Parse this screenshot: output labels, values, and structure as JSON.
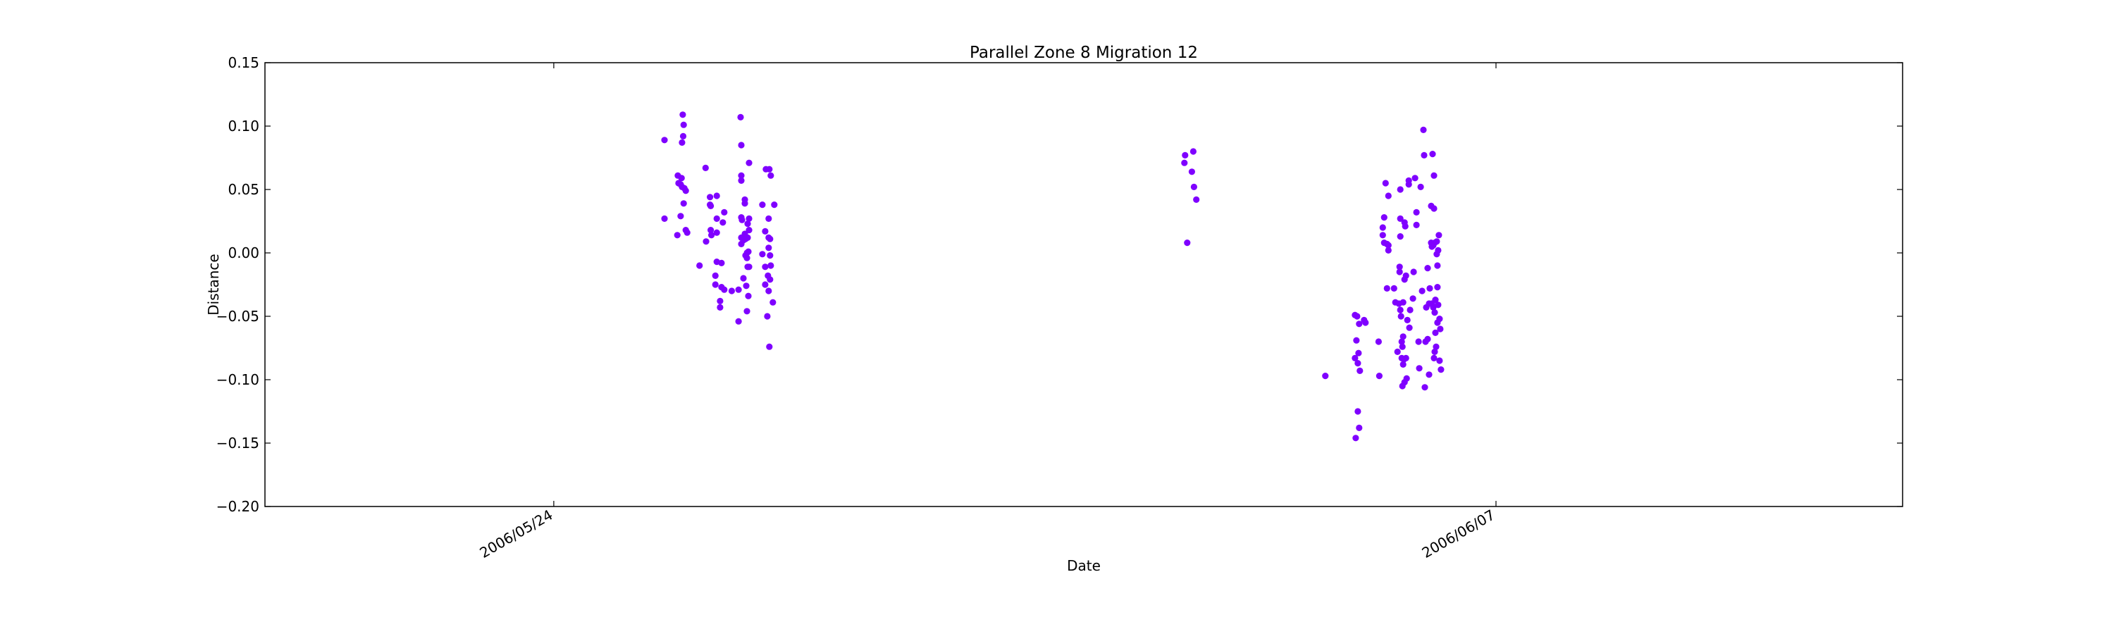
{
  "chart_data": {
    "type": "scatter",
    "title": "Parallel Zone 8 Migration 12",
    "xlabel": "Date",
    "ylabel": "Distance",
    "x_axis_type": "date",
    "xlim": [
      "2006-05-19T17:00",
      "2006-06-13T01:00"
    ],
    "ylim": [
      -0.2,
      0.15
    ],
    "x_ticks": [
      {
        "value": "2006-05-24T00:00",
        "label": "2006/05/24"
      },
      {
        "value": "2006-06-07T00:00",
        "label": "2006/06/07"
      }
    ],
    "y_ticks": [
      {
        "value": 0.15,
        "label": "0.15"
      },
      {
        "value": 0.1,
        "label": "0.10"
      },
      {
        "value": 0.05,
        "label": "0.05"
      },
      {
        "value": 0.0,
        "label": "0.00"
      },
      {
        "value": -0.05,
        "label": "−0.05"
      },
      {
        "value": -0.1,
        "label": "−0.10"
      },
      {
        "value": -0.15,
        "label": "−0.15"
      },
      {
        "value": -0.2,
        "label": "−0.20"
      }
    ],
    "grid": false,
    "legend": "none",
    "marker_color": "#7f00ff",
    "points": [
      {
        "x": "2006-05-25T15:29",
        "y": 0.089
      },
      {
        "x": "2006-05-25T15:29",
        "y": 0.027
      },
      {
        "x": "2006-05-25T20:04",
        "y": 0.014
      },
      {
        "x": "2006-05-25T20:14",
        "y": 0.061
      },
      {
        "x": "2006-05-25T20:29",
        "y": 0.055
      },
      {
        "x": "2006-05-25T21:14",
        "y": 0.054
      },
      {
        "x": "2006-05-25T21:14",
        "y": 0.029
      },
      {
        "x": "2006-05-25T21:34",
        "y": 0.059
      },
      {
        "x": "2006-05-25T21:44",
        "y": 0.052
      },
      {
        "x": "2006-05-25T21:44",
        "y": 0.087
      },
      {
        "x": "2006-05-25T21:59",
        "y": 0.109
      },
      {
        "x": "2006-05-25T22:09",
        "y": 0.092
      },
      {
        "x": "2006-05-25T22:19",
        "y": 0.101
      },
      {
        "x": "2006-05-25T22:19",
        "y": 0.039
      },
      {
        "x": "2006-05-25T22:34",
        "y": 0.051
      },
      {
        "x": "2006-05-25T23:04",
        "y": 0.018
      },
      {
        "x": "2006-05-25T23:04",
        "y": 0.049
      },
      {
        "x": "2006-05-25T23:34",
        "y": 0.016
      },
      {
        "x": "2006-05-26T03:58",
        "y": -0.01
      },
      {
        "x": "2006-05-26T06:08",
        "y": 0.067
      },
      {
        "x": "2006-05-26T06:18",
        "y": 0.009
      },
      {
        "x": "2006-05-26T07:43",
        "y": 0.044
      },
      {
        "x": "2006-05-26T07:43",
        "y": 0.038
      },
      {
        "x": "2006-05-26T07:58",
        "y": 0.037
      },
      {
        "x": "2006-05-26T07:58",
        "y": 0.018
      },
      {
        "x": "2006-05-26T08:13",
        "y": 0.014
      },
      {
        "x": "2006-05-26T09:38",
        "y": -0.018
      },
      {
        "x": "2006-05-26T09:38",
        "y": -0.025
      },
      {
        "x": "2006-05-26T10:08",
        "y": -0.007
      },
      {
        "x": "2006-05-26T10:08",
        "y": 0.027
      },
      {
        "x": "2006-05-26T10:08",
        "y": 0.045
      },
      {
        "x": "2006-05-26T10:08",
        "y": 0.016
      },
      {
        "x": "2006-05-26T11:18",
        "y": -0.038
      },
      {
        "x": "2006-05-26T11:18",
        "y": -0.043
      },
      {
        "x": "2006-05-26T11:48",
        "y": -0.008
      },
      {
        "x": "2006-05-26T11:48",
        "y": -0.027
      },
      {
        "x": "2006-05-26T12:18",
        "y": 0.024
      },
      {
        "x": "2006-05-26T12:48",
        "y": 0.032
      },
      {
        "x": "2006-05-26T12:48",
        "y": -0.029
      },
      {
        "x": "2006-05-26T15:28",
        "y": -0.03
      },
      {
        "x": "2006-05-26T17:53",
        "y": -0.029
      },
      {
        "x": "2006-05-26T17:53",
        "y": -0.054
      },
      {
        "x": "2006-05-26T18:38",
        "y": 0.107
      },
      {
        "x": "2006-05-26T18:53",
        "y": 0.085
      },
      {
        "x": "2006-05-26T18:53",
        "y": 0.057
      },
      {
        "x": "2006-05-26T18:53",
        "y": 0.061
      },
      {
        "x": "2006-05-26T18:53",
        "y": 0.028
      },
      {
        "x": "2006-05-26T18:53",
        "y": 0.012
      },
      {
        "x": "2006-05-26T18:53",
        "y": 0.007
      },
      {
        "x": "2006-05-26T19:08",
        "y": 0.026
      },
      {
        "x": "2006-05-26T19:38",
        "y": 0.01
      },
      {
        "x": "2006-05-26T19:38",
        "y": -0.02
      },
      {
        "x": "2006-05-26T20:08",
        "y": 0.042
      },
      {
        "x": "2006-05-26T20:08",
        "y": 0.039
      },
      {
        "x": "2006-05-26T20:08",
        "y": 0.015
      },
      {
        "x": "2006-05-26T20:23",
        "y": 0.011
      },
      {
        "x": "2006-05-26T20:23",
        "y": -0.002
      },
      {
        "x": "2006-05-26T20:38",
        "y": -0.026
      },
      {
        "x": "2006-05-26T20:53",
        "y": -0.046
      },
      {
        "x": "2006-05-26T20:53",
        "y": 0.012
      },
      {
        "x": "2006-05-26T20:53",
        "y": 0.0
      },
      {
        "x": "2006-05-26T20:53",
        "y": -0.004
      },
      {
        "x": "2006-05-26T21:08",
        "y": 0.023
      },
      {
        "x": "2006-05-26T21:08",
        "y": 0.012
      },
      {
        "x": "2006-05-26T21:08",
        "y": -0.011
      },
      {
        "x": "2006-05-26T21:23",
        "y": -0.034
      },
      {
        "x": "2006-05-26T21:23",
        "y": 0.001
      },
      {
        "x": "2006-05-26T21:38",
        "y": 0.071
      },
      {
        "x": "2006-05-26T21:38",
        "y": 0.018
      },
      {
        "x": "2006-05-26T21:38",
        "y": 0.027
      },
      {
        "x": "2006-05-26T21:38",
        "y": -0.011
      },
      {
        "x": "2006-05-27T02:23",
        "y": 0.038
      },
      {
        "x": "2006-05-27T02:23",
        "y": -0.001
      },
      {
        "x": "2006-05-27T03:23",
        "y": 0.017
      },
      {
        "x": "2006-05-27T03:23",
        "y": -0.011
      },
      {
        "x": "2006-05-27T03:23",
        "y": -0.025
      },
      {
        "x": "2006-05-27T03:38",
        "y": 0.066
      },
      {
        "x": "2006-05-27T04:08",
        "y": -0.05
      },
      {
        "x": "2006-05-27T04:23",
        "y": -0.018
      },
      {
        "x": "2006-05-27T04:38",
        "y": 0.027
      },
      {
        "x": "2006-05-27T04:38",
        "y": 0.012
      },
      {
        "x": "2006-05-27T04:38",
        "y": 0.004
      },
      {
        "x": "2006-05-27T04:38",
        "y": -0.03
      },
      {
        "x": "2006-05-27T04:53",
        "y": 0.066
      },
      {
        "x": "2006-05-27T04:53",
        "y": -0.074
      },
      {
        "x": "2006-05-27T05:08",
        "y": 0.011
      },
      {
        "x": "2006-05-27T05:08",
        "y": -0.002
      },
      {
        "x": "2006-05-27T05:08",
        "y": -0.021
      },
      {
        "x": "2006-05-27T05:23",
        "y": 0.061
      },
      {
        "x": "2006-05-27T05:23",
        "y": -0.01
      },
      {
        "x": "2006-05-27T06:08",
        "y": -0.039
      },
      {
        "x": "2006-05-27T06:38",
        "y": 0.038
      },
      {
        "x": "2006-06-02T08:53",
        "y": 0.071
      },
      {
        "x": "2006-06-02T09:08",
        "y": 0.077
      },
      {
        "x": "2006-06-02T09:53",
        "y": 0.008
      },
      {
        "x": "2006-06-02T11:33",
        "y": 0.064
      },
      {
        "x": "2006-06-02T12:03",
        "y": 0.08
      },
      {
        "x": "2006-06-02T12:18",
        "y": 0.052
      },
      {
        "x": "2006-06-02T13:08",
        "y": 0.042
      },
      {
        "x": "2006-06-04T11:08",
        "y": -0.097
      },
      {
        "x": "2006-06-04T21:43",
        "y": -0.049
      },
      {
        "x": "2006-06-04T21:43",
        "y": -0.083
      },
      {
        "x": "2006-06-04T21:58",
        "y": -0.146
      },
      {
        "x": "2006-06-04T22:13",
        "y": -0.069
      },
      {
        "x": "2006-06-04T22:28",
        "y": -0.05
      },
      {
        "x": "2006-06-04T22:43",
        "y": -0.125
      },
      {
        "x": "2006-06-04T22:43",
        "y": -0.087
      },
      {
        "x": "2006-06-04T22:58",
        "y": -0.079
      },
      {
        "x": "2006-06-04T23:13",
        "y": -0.138
      },
      {
        "x": "2006-06-04T23:13",
        "y": -0.056
      },
      {
        "x": "2006-06-04T23:28",
        "y": -0.093
      },
      {
        "x": "2006-06-05T00:58",
        "y": -0.053
      },
      {
        "x": "2006-06-05T01:28",
        "y": -0.055
      },
      {
        "x": "2006-06-05T06:08",
        "y": -0.07
      },
      {
        "x": "2006-06-05T06:23",
        "y": -0.097
      },
      {
        "x": "2006-06-05T07:38",
        "y": 0.02
      },
      {
        "x": "2006-06-05T07:38",
        "y": 0.014
      },
      {
        "x": "2006-06-05T08:08",
        "y": 0.028
      },
      {
        "x": "2006-06-05T08:08",
        "y": 0.008
      },
      {
        "x": "2006-06-05T08:38",
        "y": 0.055
      },
      {
        "x": "2006-06-05T09:08",
        "y": 0.007
      },
      {
        "x": "2006-06-05T09:08",
        "y": -0.028
      },
      {
        "x": "2006-06-05T09:38",
        "y": 0.045
      },
      {
        "x": "2006-06-05T09:38",
        "y": 0.002
      },
      {
        "x": "2006-06-05T09:38",
        "y": 0.006
      },
      {
        "x": "2006-06-05T11:38",
        "y": -0.028
      },
      {
        "x": "2006-06-05T12:08",
        "y": -0.039
      },
      {
        "x": "2006-06-05T12:53",
        "y": -0.078
      },
      {
        "x": "2006-06-05T13:23",
        "y": -0.04
      },
      {
        "x": "2006-06-05T13:38",
        "y": -0.011
      },
      {
        "x": "2006-06-05T13:38",
        "y": -0.015
      },
      {
        "x": "2006-06-05T13:53",
        "y": 0.05
      },
      {
        "x": "2006-06-05T13:53",
        "y": 0.027
      },
      {
        "x": "2006-06-05T13:53",
        "y": 0.013
      },
      {
        "x": "2006-06-05T13:53",
        "y": -0.045
      },
      {
        "x": "2006-06-05T14:08",
        "y": -0.05
      },
      {
        "x": "2006-06-05T14:23",
        "y": -0.083
      },
      {
        "x": "2006-06-05T14:23",
        "y": -0.07
      },
      {
        "x": "2006-06-05T14:38",
        "y": -0.105
      },
      {
        "x": "2006-06-05T14:38",
        "y": -0.074
      },
      {
        "x": "2006-06-05T14:53",
        "y": -0.066
      },
      {
        "x": "2006-06-05T14:53",
        "y": -0.039
      },
      {
        "x": "2006-06-05T14:53",
        "y": -0.088
      },
      {
        "x": "2006-06-05T15:08",
        "y": -0.084
      },
      {
        "x": "2006-06-05T15:23",
        "y": -0.102
      },
      {
        "x": "2006-06-05T15:23",
        "y": -0.021
      },
      {
        "x": "2006-06-05T15:23",
        "y": 0.024
      },
      {
        "x": "2006-06-05T15:38",
        "y": 0.021
      },
      {
        "x": "2006-06-05T15:53",
        "y": -0.018
      },
      {
        "x": "2006-06-05T15:53",
        "y": -0.083
      },
      {
        "x": "2006-06-05T16:08",
        "y": -0.099
      },
      {
        "x": "2006-06-05T16:23",
        "y": -0.053
      },
      {
        "x": "2006-06-05T16:53",
        "y": 0.054
      },
      {
        "x": "2006-06-05T16:53",
        "y": 0.057
      },
      {
        "x": "2006-06-05T17:08",
        "y": -0.059
      },
      {
        "x": "2006-06-05T17:23",
        "y": -0.045
      },
      {
        "x": "2006-06-05T18:23",
        "y": -0.036
      },
      {
        "x": "2006-06-05T18:38",
        "y": -0.015
      },
      {
        "x": "2006-06-05T19:08",
        "y": 0.059
      },
      {
        "x": "2006-06-05T19:38",
        "y": 0.032
      },
      {
        "x": "2006-06-05T19:38",
        "y": 0.022
      },
      {
        "x": "2006-06-05T20:23",
        "y": -0.07
      },
      {
        "x": "2006-06-05T20:38",
        "y": -0.091
      },
      {
        "x": "2006-06-05T21:08",
        "y": 0.052
      },
      {
        "x": "2006-06-05T21:38",
        "y": -0.03
      },
      {
        "x": "2006-06-05T22:08",
        "y": 0.097
      },
      {
        "x": "2006-06-05T22:23",
        "y": 0.077
      },
      {
        "x": "2006-06-05T22:38",
        "y": -0.106
      },
      {
        "x": "2006-06-05T22:53",
        "y": -0.07
      },
      {
        "x": "2006-06-05T23:08",
        "y": -0.043
      },
      {
        "x": "2006-06-05T23:38",
        "y": -0.012
      },
      {
        "x": "2006-06-05T23:38",
        "y": -0.068
      },
      {
        "x": "2006-06-06T00:08",
        "y": -0.096
      },
      {
        "x": "2006-06-06T00:08",
        "y": -0.04
      },
      {
        "x": "2006-06-06T00:23",
        "y": -0.028
      },
      {
        "x": "2006-06-06T00:53",
        "y": 0.037
      },
      {
        "x": "2006-06-06T00:53",
        "y": 0.008
      },
      {
        "x": "2006-06-06T01:08",
        "y": 0.005
      },
      {
        "x": "2006-06-06T01:08",
        "y": -0.04
      },
      {
        "x": "2006-06-06T01:23",
        "y": 0.078
      },
      {
        "x": "2006-06-06T01:38",
        "y": 0.006
      },
      {
        "x": "2006-06-06T01:38",
        "y": -0.043
      },
      {
        "x": "2006-06-06T01:53",
        "y": 0.061
      },
      {
        "x": "2006-06-06T01:53",
        "y": 0.035
      },
      {
        "x": "2006-06-06T01:53",
        "y": -0.083
      },
      {
        "x": "2006-06-06T02:08",
        "y": 0.008
      },
      {
        "x": "2006-06-06T02:08",
        "y": -0.047
      },
      {
        "x": "2006-06-06T02:08",
        "y": -0.078
      },
      {
        "x": "2006-06-06T02:23",
        "y": -0.037
      },
      {
        "x": "2006-06-06T02:23",
        "y": -0.063
      },
      {
        "x": "2006-06-06T02:38",
        "y": -0.074
      },
      {
        "x": "2006-06-06T02:53",
        "y": 0.009
      },
      {
        "x": "2006-06-06T02:53",
        "y": -0.001
      },
      {
        "x": "2006-06-06T03:08",
        "y": -0.01
      },
      {
        "x": "2006-06-06T03:08",
        "y": -0.027
      },
      {
        "x": "2006-06-06T03:08",
        "y": -0.055
      },
      {
        "x": "2006-06-06T03:23",
        "y": 0.002
      },
      {
        "x": "2006-06-06T03:23",
        "y": -0.041
      },
      {
        "x": "2006-06-06T03:38",
        "y": 0.014
      },
      {
        "x": "2006-06-06T03:53",
        "y": -0.052
      },
      {
        "x": "2006-06-06T03:53",
        "y": -0.085
      },
      {
        "x": "2006-06-06T04:08",
        "y": -0.06
      },
      {
        "x": "2006-06-06T04:23",
        "y": -0.092
      }
    ]
  }
}
